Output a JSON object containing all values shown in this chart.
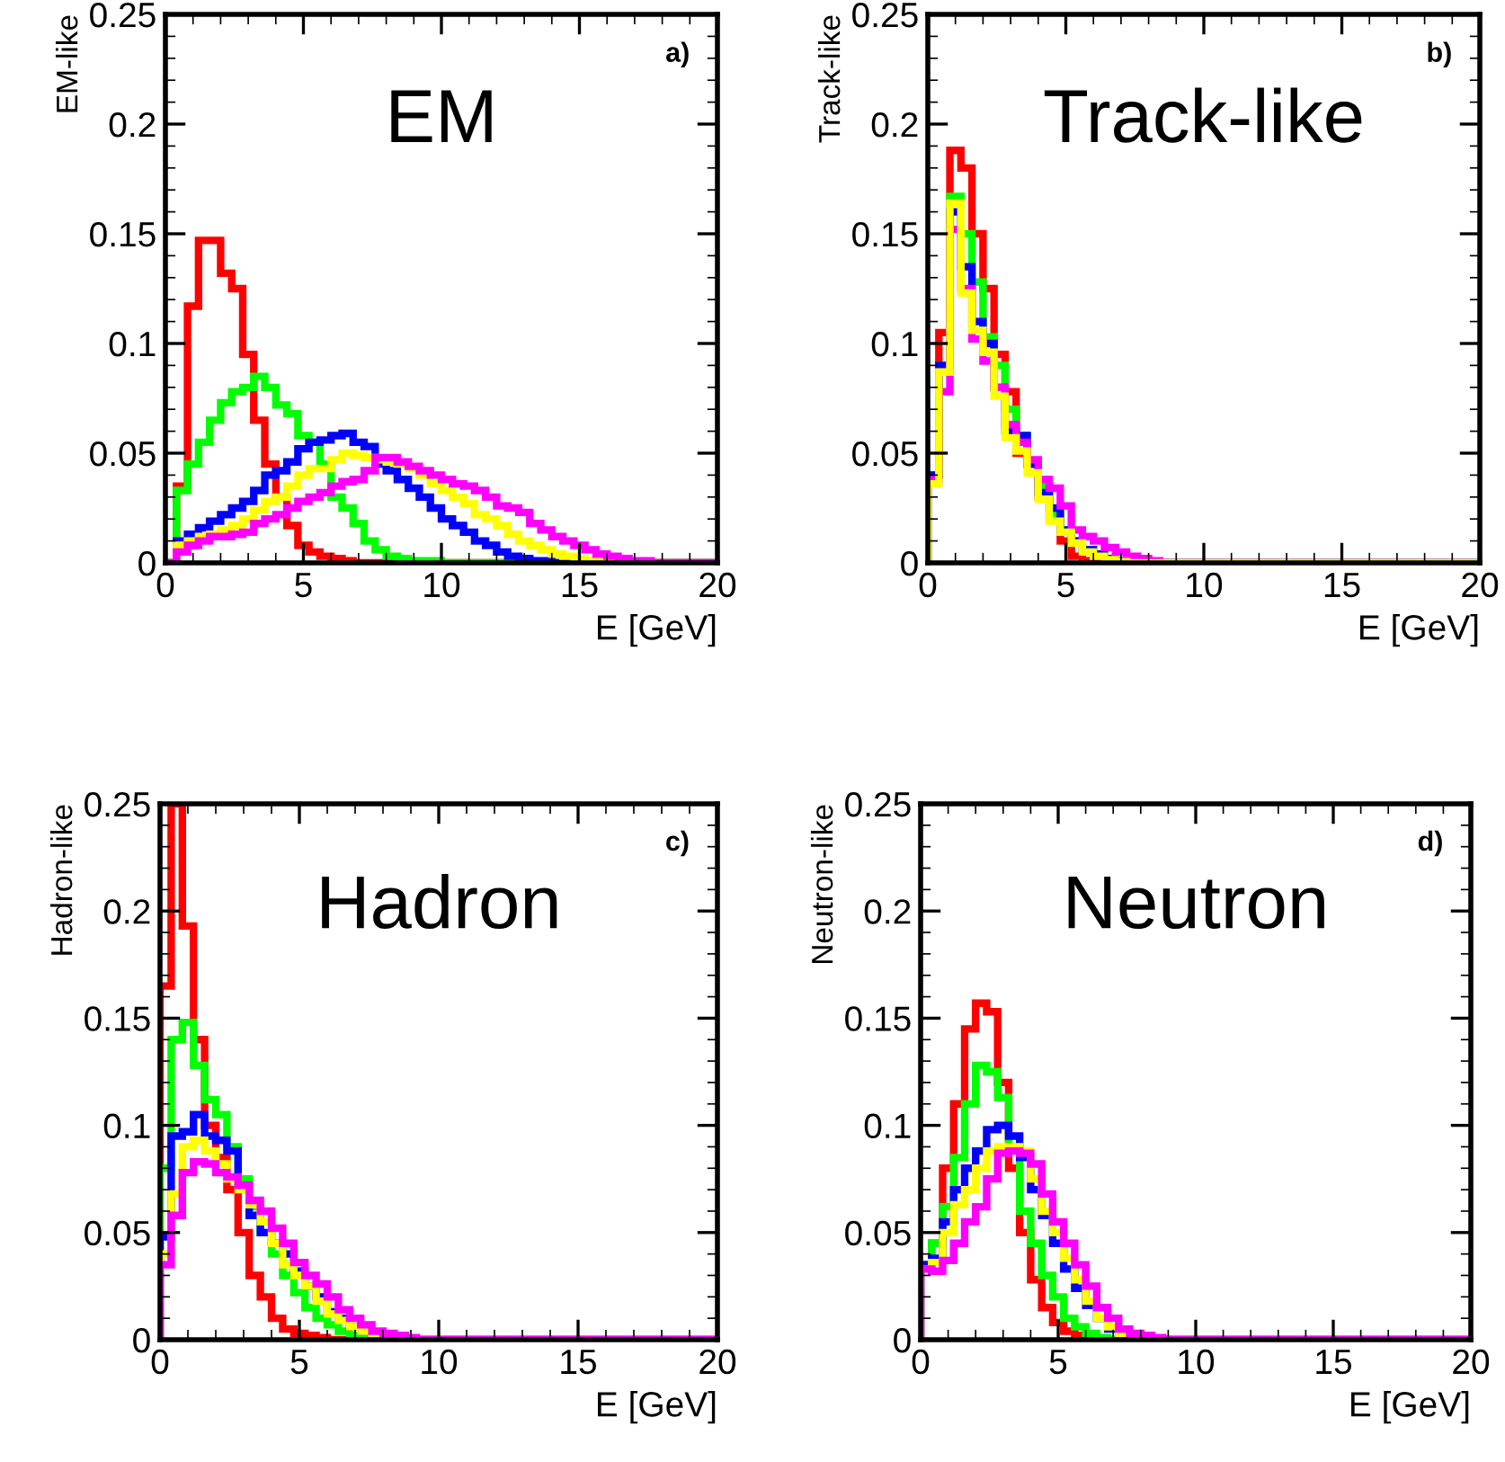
{
  "chart_data": [
    {
      "type": "histogram",
      "title": "EM",
      "xlabel": "E [GeV]",
      "ylabel": "EM-like",
      "annotations": [
        "a)"
      ],
      "bins": [
        0,
        0.4,
        0.8,
        1.2,
        1.6,
        2,
        2.4,
        2.8,
        3.2,
        3.6,
        4,
        4.4,
        4.8,
        5.2,
        5.6,
        6,
        6.4,
        6.8,
        7.2,
        7.6,
        8,
        8.4,
        8.8,
        9.2,
        9.6,
        10,
        10.4,
        10.8,
        11.2,
        11.6,
        12,
        12.4,
        12.8,
        13.2,
        13.6,
        14,
        14.4,
        14.8,
        15.2,
        15.6,
        16,
        16.4,
        16.8,
        17.2,
        17.6,
        18,
        18.4,
        18.8,
        19.2,
        19.6,
        20
      ],
      "xlim": [
        0,
        20
      ],
      "xticks": [
        0,
        5,
        10,
        15,
        20
      ],
      "ylim": [
        0,
        0.25
      ],
      "yticks": [
        0,
        0.05,
        0.1,
        0.15,
        0.2,
        0.25
      ],
      "grid": false,
      "legend": false,
      "series": [
        {
          "color": "#ff0000",
          "values": [
            0,
            0.035,
            0.117,
            0.147,
            0.147,
            0.132,
            0.125,
            0.095,
            0.065,
            0.045,
            0.03,
            0.017,
            0.008,
            0.005,
            0.003,
            0.002,
            0.001,
            0,
            0,
            0,
            0,
            0,
            0,
            0,
            0,
            0,
            0,
            0,
            0,
            0,
            0,
            0,
            0,
            0,
            0,
            0,
            0,
            0,
            0,
            0,
            0,
            0,
            0,
            0,
            0,
            0,
            0,
            0,
            0,
            0
          ]
        },
        {
          "color": "#00ff00",
          "values": [
            0,
            0.033,
            0.045,
            0.055,
            0.065,
            0.073,
            0.078,
            0.08,
            0.085,
            0.08,
            0.072,
            0.068,
            0.058,
            0.055,
            0.045,
            0.03,
            0.025,
            0.018,
            0.01,
            0.006,
            0.003,
            0.002,
            0.001,
            0.001,
            0.001,
            0,
            0,
            0,
            0,
            0,
            0,
            0,
            0,
            0,
            0,
            0,
            0,
            0,
            0,
            0,
            0,
            0,
            0,
            0,
            0,
            0,
            0,
            0,
            0,
            0
          ]
        },
        {
          "color": "#0000ff",
          "values": [
            0,
            0.01,
            0.013,
            0.016,
            0.019,
            0.022,
            0.025,
            0.028,
            0.033,
            0.04,
            0.042,
            0.046,
            0.052,
            0.055,
            0.056,
            0.058,
            0.059,
            0.055,
            0.053,
            0.045,
            0.042,
            0.038,
            0.034,
            0.03,
            0.025,
            0.02,
            0.017,
            0.014,
            0.01,
            0.008,
            0.005,
            0.003,
            0.002,
            0.001,
            0.001,
            0,
            0,
            0,
            0,
            0,
            0,
            0,
            0,
            0,
            0,
            0,
            0,
            0,
            0,
            0
          ]
        },
        {
          "color": "#ffff00",
          "values": [
            0,
            0.008,
            0.01,
            0.012,
            0.013,
            0.015,
            0.017,
            0.02,
            0.024,
            0.028,
            0.03,
            0.035,
            0.04,
            0.043,
            0.043,
            0.047,
            0.05,
            0.049,
            0.048,
            0.047,
            0.046,
            0.045,
            0.043,
            0.04,
            0.036,
            0.033,
            0.03,
            0.027,
            0.022,
            0.02,
            0.017,
            0.013,
            0.01,
            0.008,
            0.006,
            0.004,
            0.003,
            0.002,
            0.001,
            0.001,
            0,
            0,
            0,
            0,
            0,
            0,
            0,
            0,
            0,
            0
          ]
        },
        {
          "color": "#ff00ff",
          "values": [
            0,
            0.005,
            0.008,
            0.01,
            0.012,
            0.012,
            0.013,
            0.014,
            0.018,
            0.02,
            0.022,
            0.025,
            0.028,
            0.03,
            0.032,
            0.035,
            0.037,
            0.038,
            0.042,
            0.048,
            0.048,
            0.046,
            0.044,
            0.042,
            0.04,
            0.038,
            0.036,
            0.035,
            0.033,
            0.03,
            0.026,
            0.025,
            0.023,
            0.018,
            0.015,
            0.012,
            0.01,
            0.008,
            0.006,
            0.004,
            0.003,
            0.002,
            0.001,
            0.001,
            0,
            0,
            0,
            0,
            0,
            0
          ]
        }
      ]
    },
    {
      "type": "histogram",
      "title": "Track-like",
      "xlabel": "E [GeV]",
      "ylabel": "Track-like",
      "annotations": [
        "b)"
      ],
      "bins": [
        0,
        0.4,
        0.8,
        1.2,
        1.6,
        2,
        2.4,
        2.8,
        3.2,
        3.6,
        4,
        4.4,
        4.8,
        5.2,
        5.6,
        6,
        6.4,
        6.8,
        7.2,
        7.6,
        8,
        8.4,
        8.8,
        9.2,
        9.6,
        10,
        10.4,
        10.8,
        11.2,
        11.6,
        12,
        12.4,
        12.8,
        13.2,
        13.6,
        14,
        14.4,
        14.8,
        15.2,
        15.6,
        16,
        16.4,
        16.8,
        17.2,
        17.6,
        18,
        18.4,
        18.8,
        19.2,
        19.6,
        20
      ],
      "xlim": [
        0,
        20
      ],
      "xticks": [
        0,
        5,
        10,
        15,
        20
      ],
      "ylim": [
        0,
        0.25
      ],
      "yticks": [
        0,
        0.05,
        0.1,
        0.15,
        0.2,
        0.25
      ],
      "grid": false,
      "legend": false,
      "series": [
        {
          "color": "#ff0000",
          "values": [
            0.04,
            0.105,
            0.188,
            0.18,
            0.15,
            0.125,
            0.095,
            0.078,
            0.05,
            0.045,
            0.03,
            0.02,
            0.01,
            0.003,
            0.001,
            0,
            0,
            0,
            0,
            0,
            0,
            0,
            0,
            0,
            0,
            0,
            0,
            0,
            0,
            0,
            0,
            0,
            0,
            0,
            0,
            0,
            0,
            0,
            0,
            0,
            0,
            0,
            0,
            0,
            0,
            0,
            0,
            0,
            0,
            0
          ]
        },
        {
          "color": "#00ff00",
          "values": [
            0.04,
            0.09,
            0.167,
            0.15,
            0.128,
            0.103,
            0.09,
            0.07,
            0.058,
            0.045,
            0.035,
            0.022,
            0.015,
            0.01,
            0.006,
            0.004,
            0.002,
            0.001,
            0,
            0,
            0,
            0,
            0,
            0,
            0,
            0,
            0,
            0,
            0,
            0,
            0,
            0,
            0,
            0,
            0,
            0,
            0,
            0,
            0,
            0,
            0,
            0,
            0,
            0,
            0,
            0,
            0,
            0,
            0,
            0
          ]
        },
        {
          "color": "#0000ff",
          "values": [
            0.04,
            0.09,
            0.16,
            0.135,
            0.11,
            0.1,
            0.08,
            0.06,
            0.058,
            0.045,
            0.032,
            0.025,
            0.015,
            0.01,
            0.006,
            0.004,
            0.002,
            0.001,
            0,
            0,
            0,
            0,
            0,
            0,
            0,
            0,
            0,
            0,
            0,
            0,
            0,
            0,
            0,
            0,
            0,
            0,
            0,
            0,
            0,
            0,
            0,
            0,
            0,
            0,
            0,
            0,
            0,
            0,
            0,
            0
          ]
        },
        {
          "color": "#ff00ff",
          "values": [
            0.038,
            0.078,
            0.152,
            0.125,
            0.102,
            0.092,
            0.08,
            0.063,
            0.055,
            0.047,
            0.038,
            0.034,
            0.026,
            0.015,
            0.012,
            0.01,
            0.007,
            0.005,
            0.003,
            0.002,
            0.001,
            0,
            0,
            0,
            0,
            0,
            0,
            0,
            0,
            0,
            0,
            0,
            0,
            0,
            0,
            0,
            0,
            0,
            0,
            0,
            0,
            0,
            0,
            0,
            0,
            0,
            0,
            0,
            0,
            0
          ]
        },
        {
          "color": "#ffff00",
          "values": [
            0.036,
            0.087,
            0.164,
            0.123,
            0.106,
            0.096,
            0.076,
            0.057,
            0.051,
            0.041,
            0.029,
            0.019,
            0.014,
            0.009,
            0.005,
            0.003,
            0.0015,
            0.0005,
            0,
            0,
            0,
            0,
            0,
            0,
            0,
            0,
            0,
            0,
            0,
            0,
            0,
            0,
            0,
            0,
            0,
            0,
            0,
            0,
            0,
            0,
            0,
            0,
            0,
            0,
            0,
            0,
            0,
            0,
            0,
            0
          ]
        }
      ]
    },
    {
      "type": "histogram",
      "title": "Hadron",
      "xlabel": "E [GeV]",
      "ylabel": "Hadron-like",
      "annotations": [
        "c)"
      ],
      "bins": [
        0,
        0.4,
        0.8,
        1.2,
        1.6,
        2,
        2.4,
        2.8,
        3.2,
        3.6,
        4,
        4.4,
        4.8,
        5.2,
        5.6,
        6,
        6.4,
        6.8,
        7.2,
        7.6,
        8,
        8.4,
        8.8,
        9.2,
        9.6,
        10,
        10.4,
        10.8,
        11.2,
        11.6,
        12,
        12.4,
        12.8,
        13.2,
        13.6,
        14,
        14.4,
        14.8,
        15.2,
        15.6,
        16,
        16.4,
        16.8,
        17.2,
        17.6,
        18,
        18.4,
        18.8,
        19.2,
        19.6,
        20
      ],
      "xlim": [
        0,
        20
      ],
      "xticks": [
        0,
        5,
        10,
        15,
        20
      ],
      "ylim": [
        0,
        0.25
      ],
      "yticks": [
        0,
        0.05,
        0.1,
        0.15,
        0.2,
        0.25
      ],
      "grid": false,
      "legend": false,
      "series": [
        {
          "color": "#ff0000",
          "values": [
            0.165,
            0.25,
            0.193,
            0.14,
            0.1,
            0.085,
            0.07,
            0.05,
            0.03,
            0.02,
            0.01,
            0.005,
            0.003,
            0.002,
            0.001,
            0,
            0,
            0,
            0,
            0,
            0,
            0,
            0,
            0,
            0,
            0,
            0,
            0,
            0,
            0,
            0,
            0,
            0,
            0,
            0,
            0,
            0,
            0,
            0,
            0,
            0,
            0,
            0,
            0,
            0,
            0,
            0,
            0,
            0,
            0
          ]
        },
        {
          "color": "#00ff00",
          "values": [
            0.08,
            0.14,
            0.148,
            0.128,
            0.112,
            0.105,
            0.09,
            0.075,
            0.062,
            0.05,
            0.04,
            0.03,
            0.022,
            0.015,
            0.01,
            0.007,
            0.004,
            0.002,
            0.001,
            0,
            0,
            0,
            0,
            0,
            0,
            0,
            0,
            0,
            0,
            0,
            0,
            0,
            0,
            0,
            0,
            0,
            0,
            0,
            0,
            0,
            0,
            0,
            0,
            0,
            0,
            0,
            0,
            0,
            0,
            0
          ]
        },
        {
          "color": "#0000ff",
          "values": [
            0.048,
            0.095,
            0.097,
            0.105,
            0.095,
            0.093,
            0.088,
            0.072,
            0.058,
            0.05,
            0.045,
            0.04,
            0.032,
            0.025,
            0.02,
            0.013,
            0.01,
            0.006,
            0.004,
            0.002,
            0.001,
            0,
            0,
            0,
            0,
            0,
            0,
            0,
            0,
            0,
            0,
            0,
            0,
            0,
            0,
            0,
            0,
            0,
            0,
            0,
            0,
            0,
            0,
            0,
            0,
            0,
            0,
            0,
            0,
            0
          ]
        },
        {
          "color": "#ffff00",
          "values": [
            0.04,
            0.068,
            0.09,
            0.093,
            0.088,
            0.082,
            0.075,
            0.07,
            0.063,
            0.055,
            0.045,
            0.035,
            0.03,
            0.025,
            0.018,
            0.012,
            0.009,
            0.006,
            0.004,
            0.002,
            0.001,
            0,
            0,
            0,
            0,
            0,
            0,
            0,
            0,
            0,
            0,
            0,
            0,
            0,
            0,
            0,
            0,
            0,
            0,
            0,
            0,
            0,
            0,
            0,
            0,
            0,
            0,
            0,
            0,
            0
          ]
        },
        {
          "color": "#ff00ff",
          "values": [
            0.035,
            0.058,
            0.078,
            0.083,
            0.082,
            0.078,
            0.076,
            0.072,
            0.065,
            0.06,
            0.052,
            0.045,
            0.036,
            0.03,
            0.026,
            0.02,
            0.014,
            0.01,
            0.007,
            0.004,
            0.003,
            0.002,
            0.001,
            0,
            0,
            0,
            0,
            0,
            0,
            0,
            0,
            0,
            0,
            0,
            0,
            0,
            0,
            0,
            0,
            0,
            0,
            0,
            0,
            0,
            0,
            0,
            0,
            0,
            0,
            0
          ]
        }
      ]
    },
    {
      "type": "histogram",
      "title": "Neutron",
      "xlabel": "E [GeV]",
      "ylabel": "Neutron-like",
      "annotations": [
        "d)"
      ],
      "bins": [
        0,
        0.4,
        0.8,
        1.2,
        1.6,
        2,
        2.4,
        2.8,
        3.2,
        3.6,
        4,
        4.4,
        4.8,
        5.2,
        5.6,
        6,
        6.4,
        6.8,
        7.2,
        7.6,
        8,
        8.4,
        8.8,
        9.2,
        9.6,
        10,
        10.4,
        10.8,
        11.2,
        11.6,
        12,
        12.4,
        12.8,
        13.2,
        13.6,
        14,
        14.4,
        14.8,
        15.2,
        15.6,
        16,
        16.4,
        16.8,
        17.2,
        17.6,
        18,
        18.4,
        18.8,
        19.2,
        19.6,
        20
      ],
      "xlim": [
        0,
        20
      ],
      "xticks": [
        0,
        5,
        10,
        15,
        20
      ],
      "ylim": [
        0,
        0.25
      ],
      "yticks": [
        0,
        0.05,
        0.1,
        0.15,
        0.2,
        0.25
      ],
      "grid": false,
      "legend": false,
      "series": [
        {
          "color": "#ff0000",
          "values": [
            0.035,
            0.045,
            0.08,
            0.11,
            0.145,
            0.157,
            0.153,
            0.12,
            0.08,
            0.05,
            0.028,
            0.015,
            0.008,
            0.004,
            0.002,
            0.001,
            0,
            0,
            0,
            0,
            0,
            0,
            0,
            0,
            0,
            0,
            0,
            0,
            0,
            0,
            0,
            0,
            0,
            0,
            0,
            0,
            0,
            0,
            0,
            0,
            0,
            0,
            0,
            0,
            0,
            0,
            0,
            0,
            0,
            0
          ]
        },
        {
          "color": "#00ff00",
          "values": [
            0.035,
            0.045,
            0.062,
            0.085,
            0.11,
            0.128,
            0.125,
            0.113,
            0.088,
            0.06,
            0.045,
            0.03,
            0.02,
            0.01,
            0.006,
            0.003,
            0.001,
            0,
            0,
            0,
            0,
            0,
            0,
            0,
            0,
            0,
            0,
            0,
            0,
            0,
            0,
            0,
            0,
            0,
            0,
            0,
            0,
            0,
            0,
            0,
            0,
            0,
            0,
            0,
            0,
            0,
            0,
            0,
            0,
            0
          ]
        },
        {
          "color": "#0000ff",
          "values": [
            0.035,
            0.038,
            0.055,
            0.07,
            0.08,
            0.088,
            0.098,
            0.1,
            0.095,
            0.085,
            0.07,
            0.058,
            0.045,
            0.033,
            0.024,
            0.016,
            0.01,
            0.005,
            0.003,
            0.001,
            0,
            0,
            0,
            0,
            0,
            0,
            0,
            0,
            0,
            0,
            0,
            0,
            0,
            0,
            0,
            0,
            0,
            0,
            0,
            0,
            0,
            0,
            0,
            0,
            0,
            0,
            0,
            0,
            0,
            0
          ]
        },
        {
          "color": "#ffff00",
          "values": [
            0.033,
            0.036,
            0.05,
            0.063,
            0.07,
            0.08,
            0.088,
            0.09,
            0.09,
            0.088,
            0.075,
            0.06,
            0.05,
            0.038,
            0.028,
            0.018,
            0.01,
            0.006,
            0.003,
            0.001,
            0,
            0,
            0,
            0,
            0,
            0,
            0,
            0,
            0,
            0,
            0,
            0,
            0,
            0,
            0,
            0,
            0,
            0,
            0,
            0,
            0,
            0,
            0,
            0,
            0,
            0,
            0,
            0,
            0,
            0
          ]
        },
        {
          "color": "#ff00ff",
          "values": [
            0.033,
            0.032,
            0.037,
            0.045,
            0.055,
            0.062,
            0.075,
            0.087,
            0.088,
            0.087,
            0.082,
            0.068,
            0.055,
            0.045,
            0.035,
            0.025,
            0.015,
            0.01,
            0.005,
            0.003,
            0.002,
            0.001,
            0,
            0,
            0,
            0,
            0,
            0,
            0,
            0,
            0,
            0,
            0,
            0,
            0,
            0,
            0,
            0,
            0,
            0,
            0,
            0,
            0,
            0,
            0,
            0,
            0,
            0,
            0,
            0
          ]
        }
      ]
    }
  ]
}
